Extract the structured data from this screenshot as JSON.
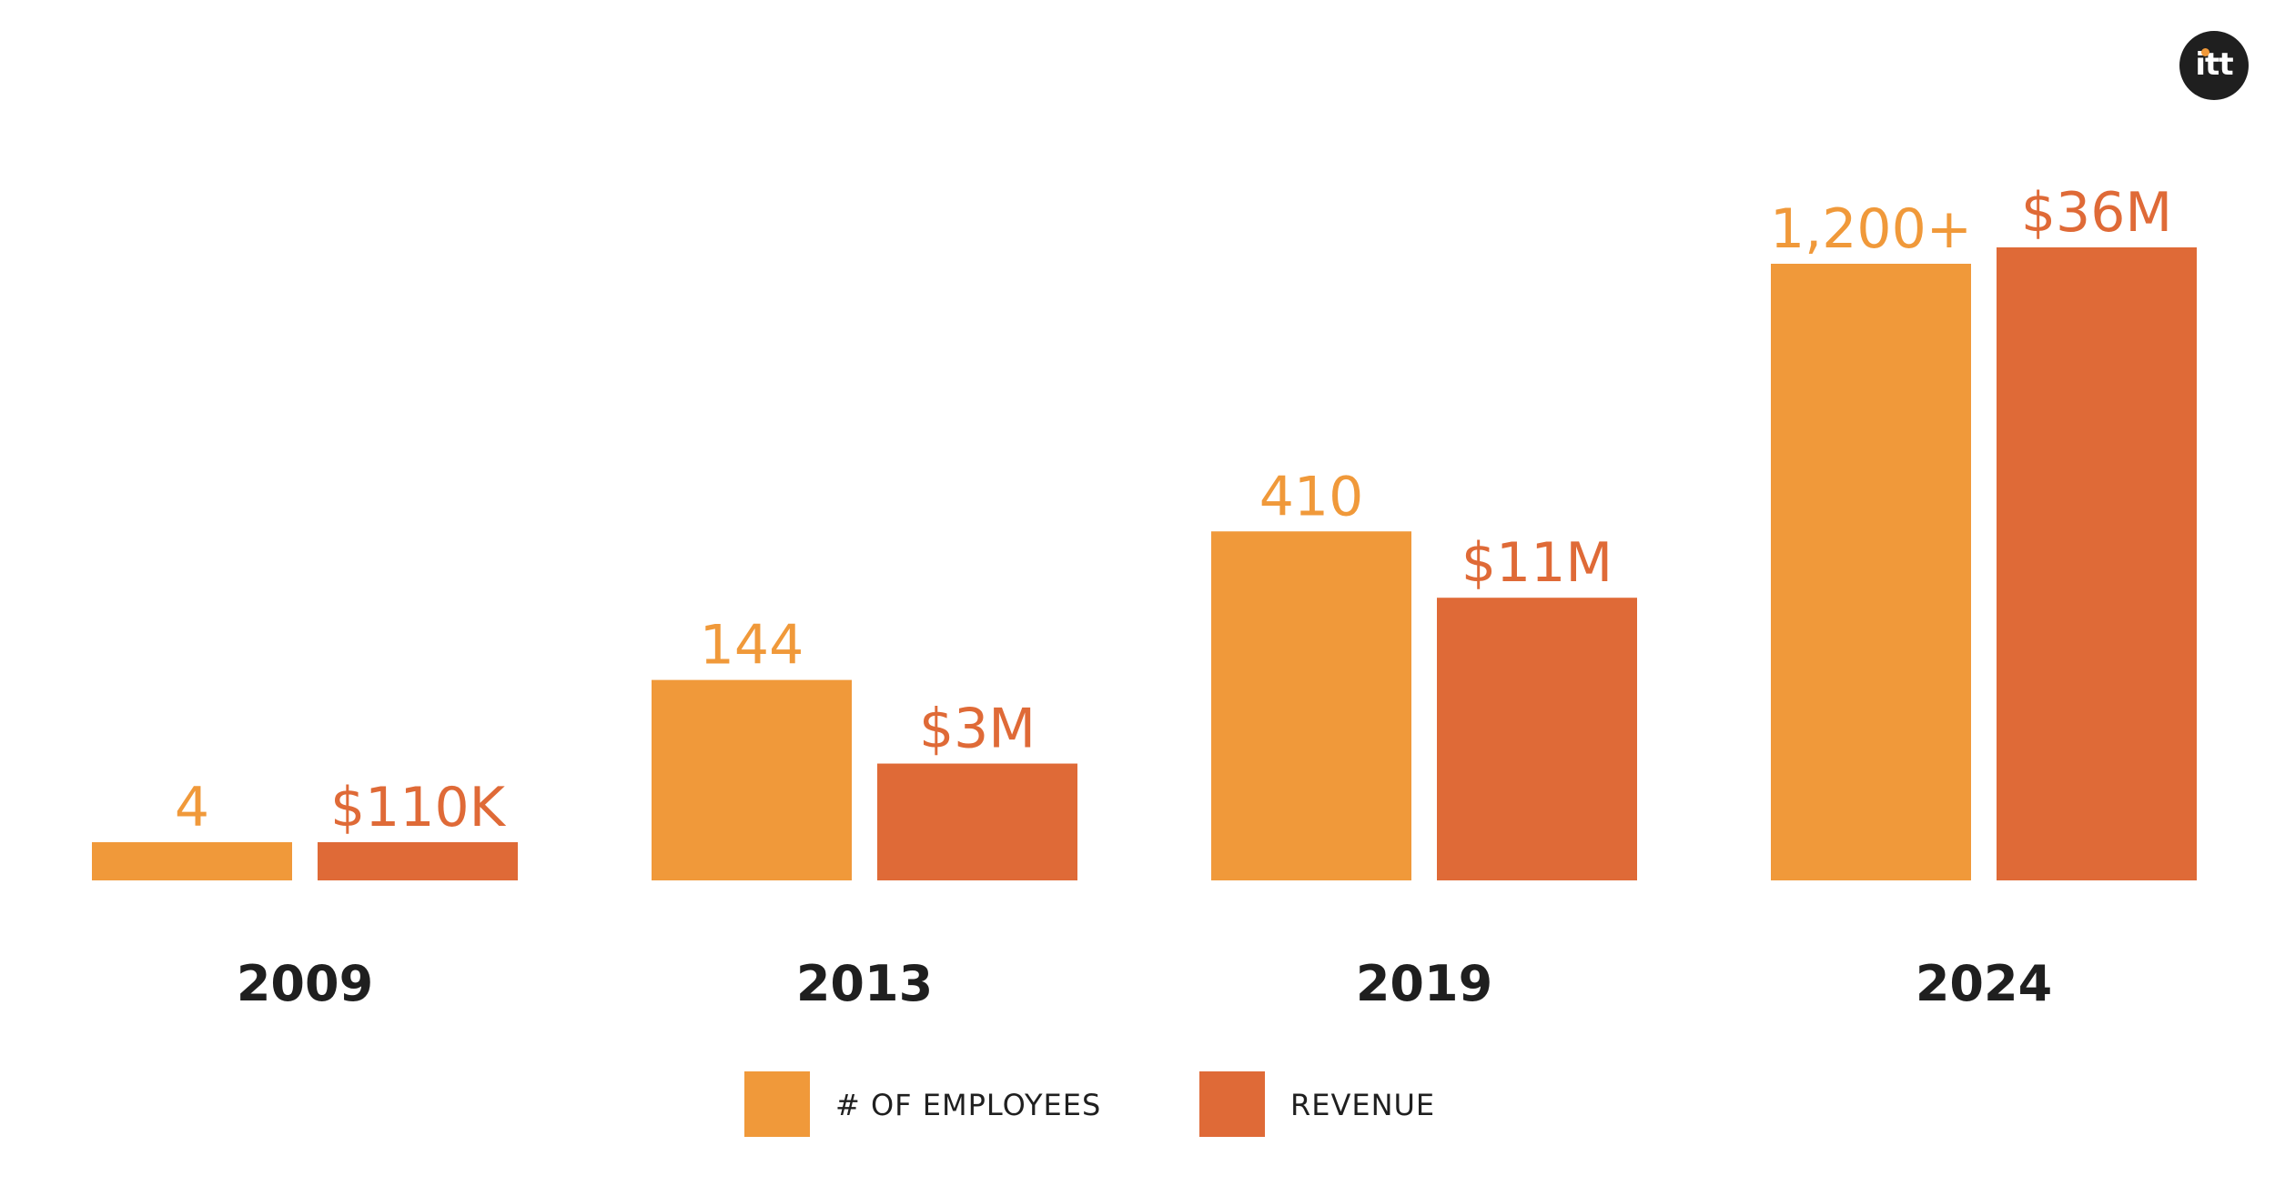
{
  "chart_data": {
    "type": "bar",
    "categories": [
      "2009",
      "2013",
      "2019",
      "2024"
    ],
    "series": [
      {
        "name": "# OF EMPLOYEES",
        "values": [
          4,
          144,
          410,
          1200
        ],
        "labels": [
          "4",
          "144",
          "410",
          "1,200+"
        ],
        "color": "#f0993a"
      },
      {
        "name": "REVENUE",
        "unit": "$M",
        "values": [
          0.11,
          3,
          11,
          36
        ],
        "labels": [
          "$110K",
          "$3M",
          "$11M",
          "$36M"
        ],
        "color": "#df6a37"
      }
    ],
    "title": "",
    "xlabel": "",
    "ylabel": "",
    "legend": "bottom-center",
    "grid": false,
    "axes_visible": false
  },
  "logo": {
    "text": "itt",
    "bg_color": "#1f1f1f",
    "dot_color": "#f0993a"
  },
  "colors": {
    "category_label": "#1f1f1f",
    "background": "#ffffff"
  }
}
